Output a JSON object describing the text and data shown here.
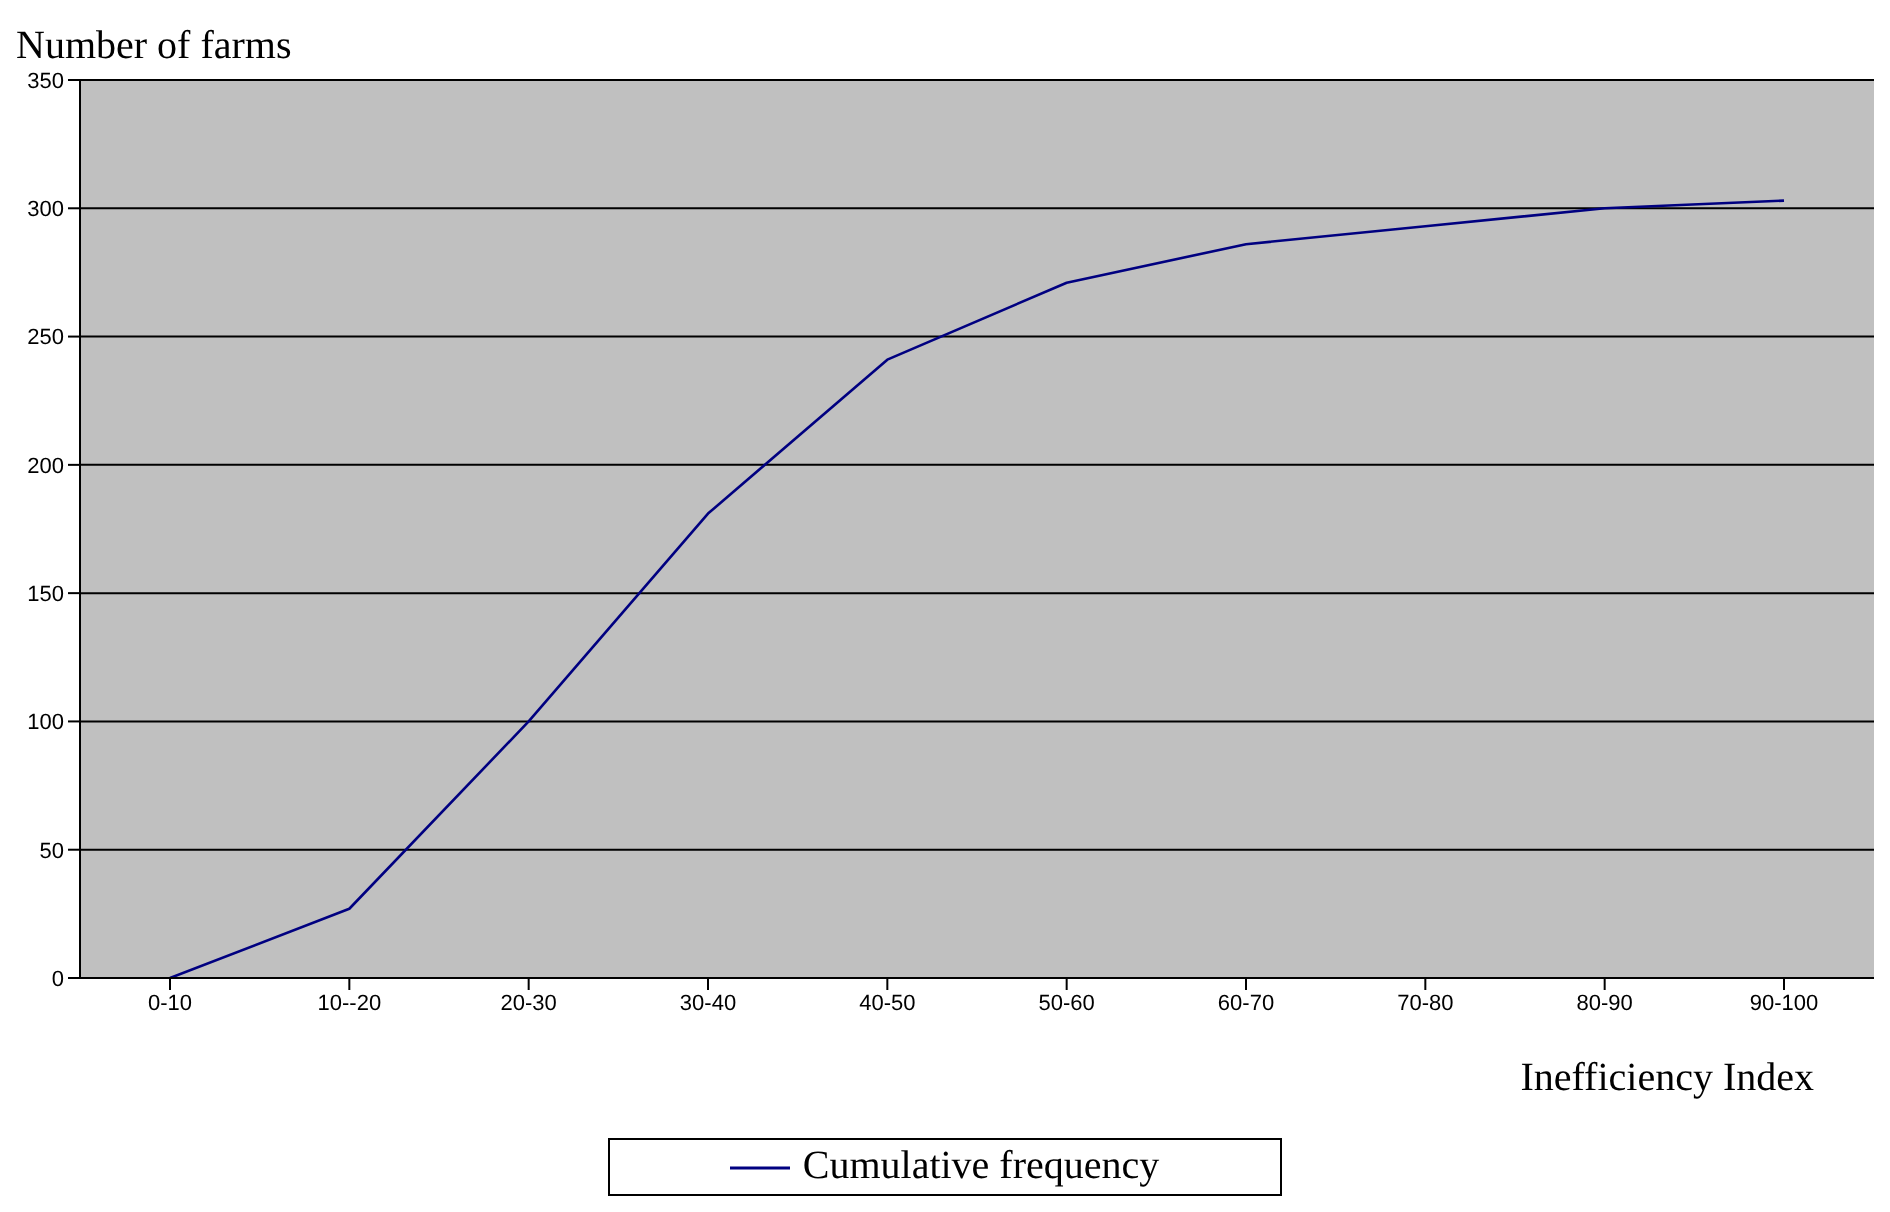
{
  "chart_data": {
    "type": "line",
    "ylabel": "Number of farms",
    "xlabel": "Inefficiency Index",
    "categories": [
      "0-10",
      "10--20",
      "20-30",
      "30-40",
      "40-50",
      "50-60",
      "60-70",
      "70-80",
      "80-90",
      "90-100"
    ],
    "series": [
      {
        "name": "Cumulative frequency",
        "color": "#000080",
        "values": [
          0,
          27,
          100,
          181,
          241,
          271,
          286,
          293,
          300,
          303
        ]
      }
    ],
    "ylim": [
      0,
      350
    ],
    "yticks": [
      0,
      50,
      100,
      150,
      200,
      250,
      300,
      350
    ],
    "grid": "y",
    "legend": "bottom",
    "marker": "none",
    "line_style": "solid"
  }
}
